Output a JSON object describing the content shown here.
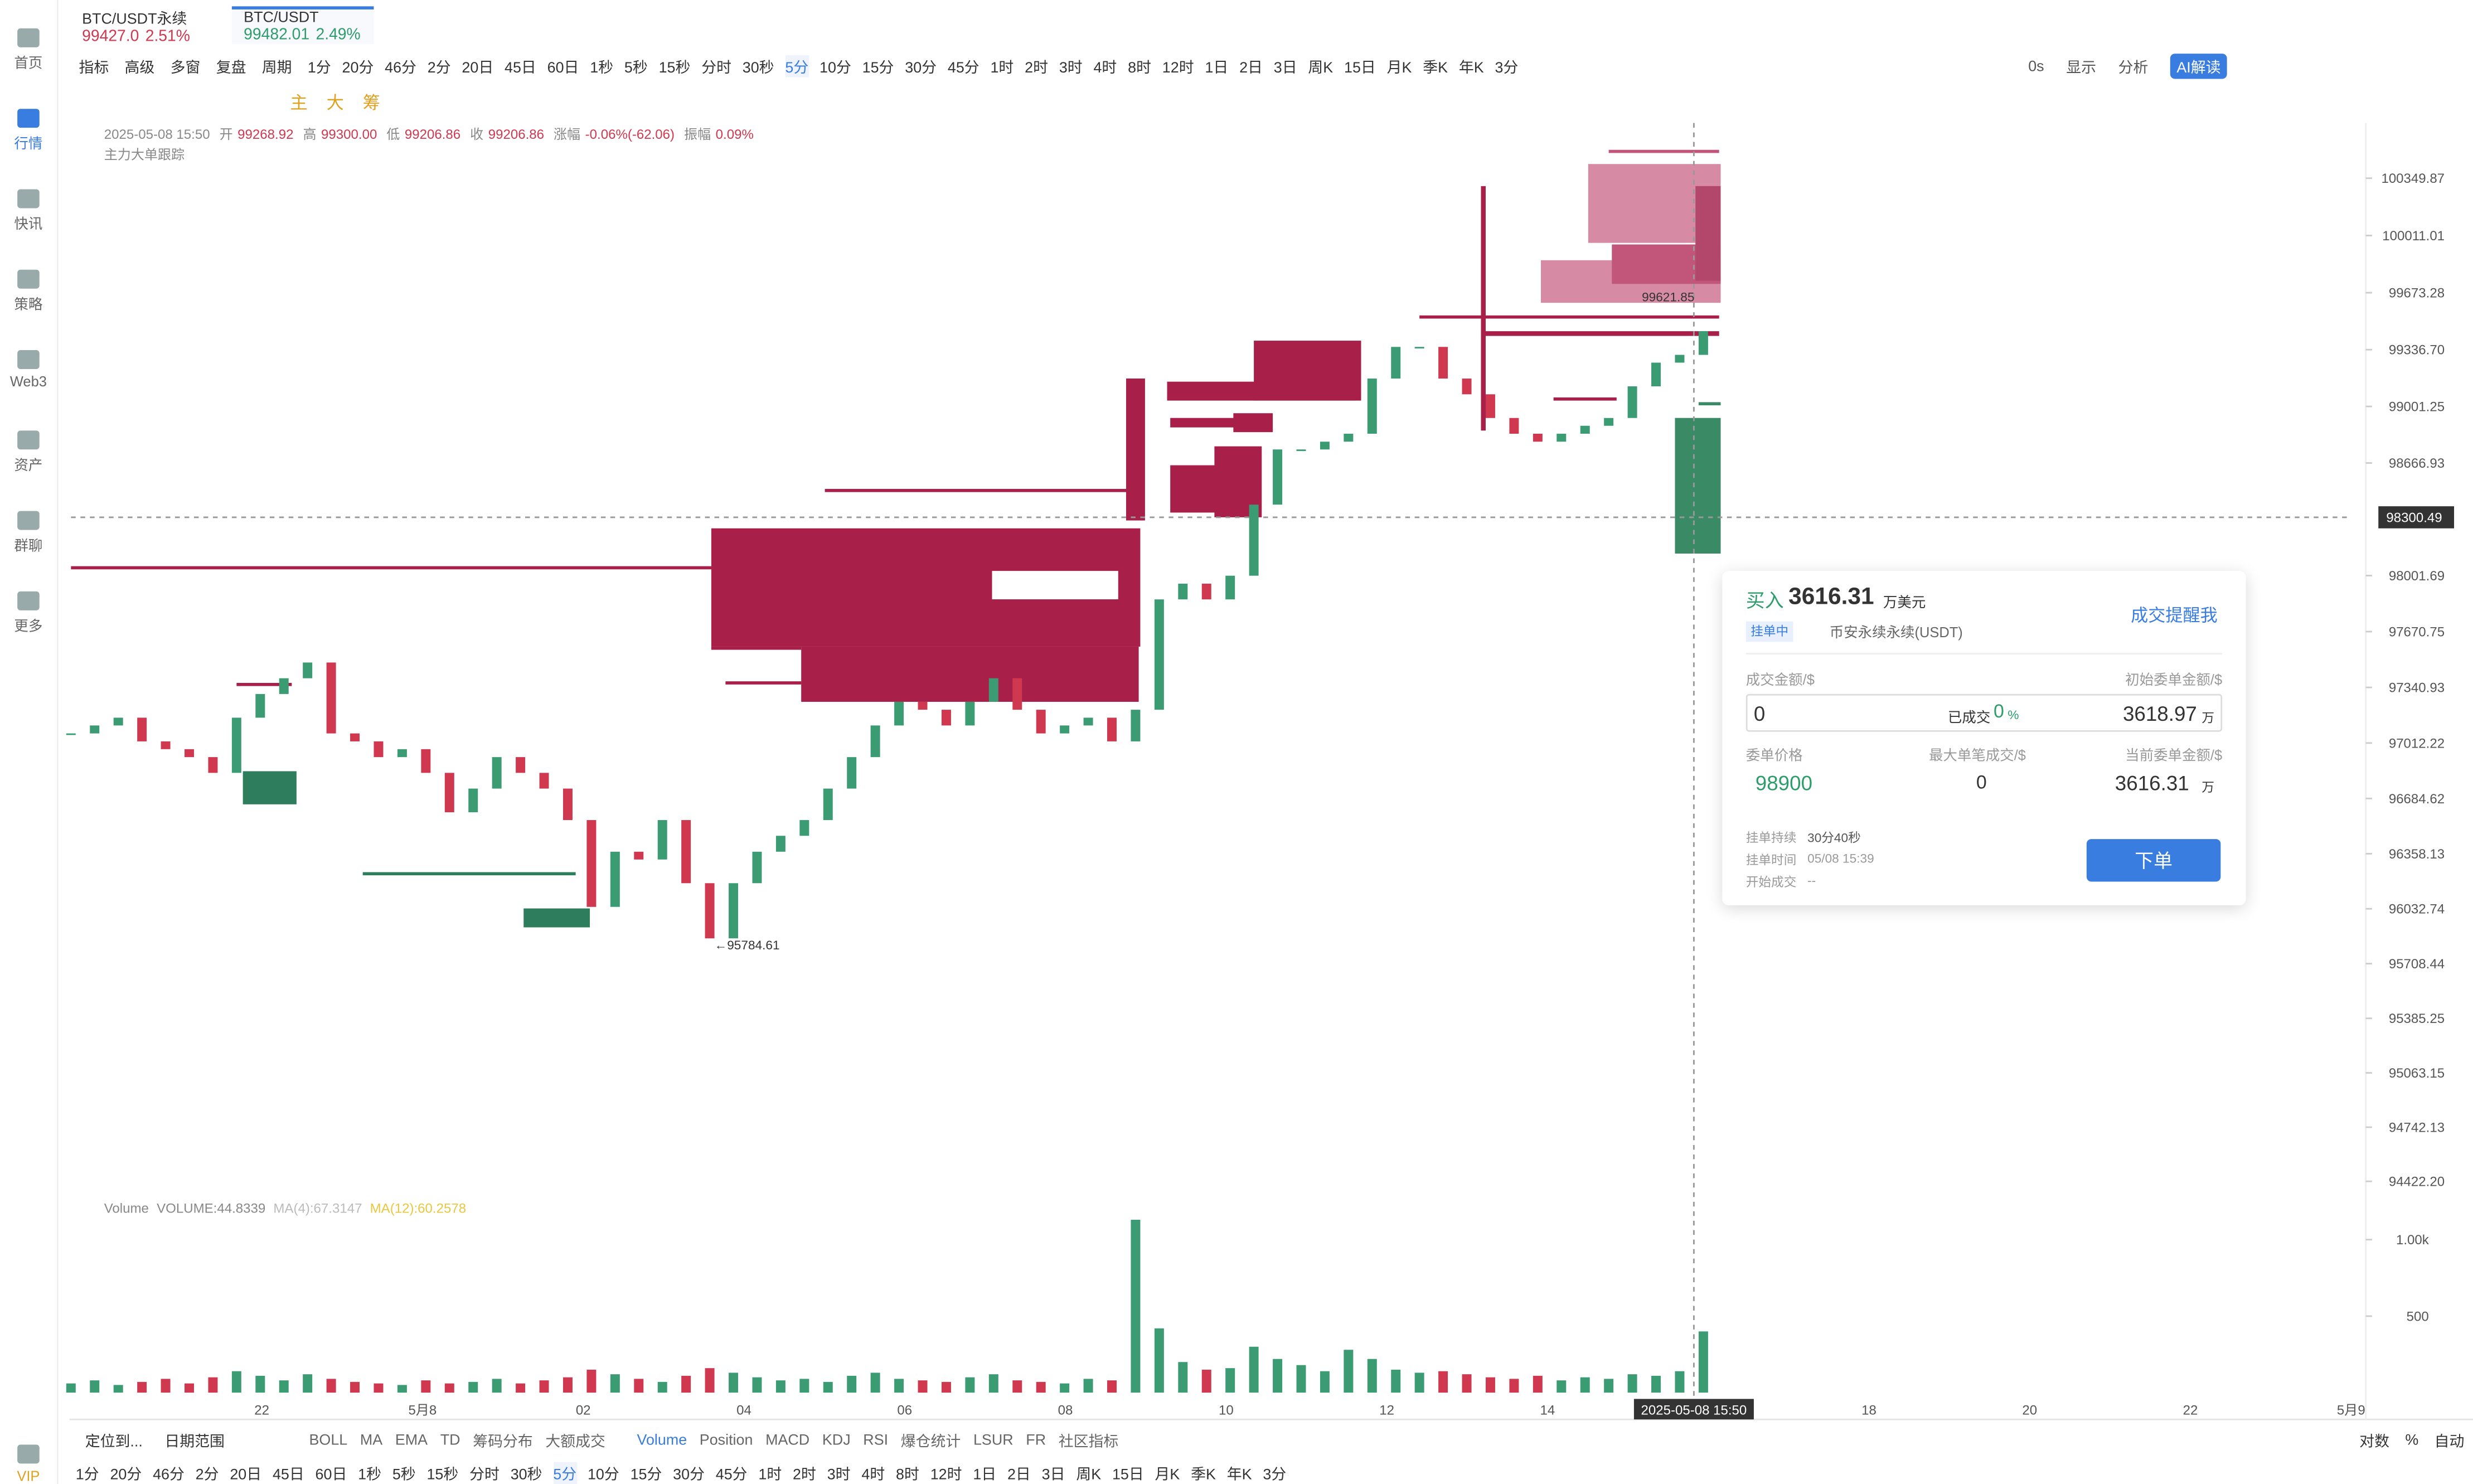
{
  "sidebar": [
    "首页",
    "行情",
    "快讯",
    "策略",
    "Web3",
    "资产",
    "群聊",
    "更多",
    "VIP"
  ],
  "tabs": [
    {
      "name": "BTC/USDT永续",
      "price": "99427.0",
      "change": "2.51%"
    },
    {
      "name": "BTC/USDT",
      "price": "99482.01",
      "change": "2.49%"
    }
  ],
  "toolbar": {
    "left": [
      "指标",
      "高级",
      "多窗",
      "复盘",
      "周期"
    ],
    "intervals": [
      "1分",
      "20分",
      "46分",
      "2分",
      "20日",
      "45日",
      "60日",
      "1秒",
      "5秒",
      "15秒",
      "分时",
      "30秒",
      "5分",
      "10分",
      "15分",
      "30分",
      "45分",
      "1时",
      "2时",
      "3时",
      "4时",
      "8时",
      "12时",
      "1日",
      "2日",
      "3日",
      "周K",
      "15日",
      "月K",
      "季K",
      "年K",
      "3分"
    ],
    "right": [
      "0s",
      "显示",
      "分析",
      "AI解读"
    ]
  },
  "draw_tools": [
    "主",
    "大",
    "筹"
  ],
  "info": {
    "time": "2025-05-08 15:50",
    "fields": [
      {
        "label": "开",
        "value": "99268.92"
      },
      {
        "label": "高",
        "value": "99300.00"
      },
      {
        "label": "低",
        "value": "99206.86"
      },
      {
        "label": "收",
        "value": "99206.86"
      },
      {
        "label": "涨幅",
        "value": "-0.06%(-62.06)"
      },
      {
        "label": "振幅",
        "value": "0.09%"
      }
    ],
    "tracker": "主力大单跟踪"
  },
  "chart_data": {
    "type": "candlestick",
    "closes": [
      97069,
      97116,
      97162,
      97022,
      96976,
      96929,
      96836,
      97162,
      97302,
      97395,
      97488,
      97069,
      97022,
      96929,
      96976,
      96836,
      96603,
      96743,
      96929,
      96836,
      96743,
      96557,
      96044,
      96370,
      96324,
      96557,
      96184,
      95858,
      96184,
      96370,
      96464,
      96557,
      96743,
      96929,
      97116,
      97256,
      97209,
      97116,
      97256,
      97395,
      97209,
      97069,
      97116,
      97162,
      97022,
      97209,
      97861,
      97954,
      97861,
      98001,
      98421,
      98747,
      98747,
      98793,
      98840,
      99166,
      99353,
      99353,
      99166,
      99073,
      98933,
      98840,
      98793,
      98840,
      98887,
      98933,
      99120,
      99260,
      99306,
      99446
    ],
    "volumes": [
      60,
      80,
      50,
      70,
      90,
      60,
      100,
      140,
      110,
      80,
      120,
      90,
      70,
      60,
      50,
      80,
      60,
      70,
      90,
      60,
      80,
      100,
      150,
      120,
      90,
      70,
      110,
      160,
      130,
      100,
      80,
      90,
      70,
      110,
      130,
      90,
      80,
      70,
      100,
      120,
      80,
      70,
      60,
      90,
      80,
      1130,
      420,
      200,
      150,
      160,
      300,
      220,
      180,
      140,
      280,
      220,
      150,
      130,
      140,
      120,
      100,
      90,
      110,
      80,
      100,
      90,
      120,
      110,
      140,
      400
    ],
    "ylim": [
      94320,
      100471
    ],
    "yticks": [
      100349.87,
      100011.01,
      99673.28,
      {
        "value": 99336.7,
        "label": "99336.70"
      },
      99001.25,
      98666.93,
      98001.69,
      97670.75,
      97340.93,
      97012.22,
      96684.62,
      96358.13,
      96032.74,
      95708.44,
      95385.25,
      95063.15,
      94742.13,
      {
        "value": 94422.2,
        "label": "94422.20"
      }
    ],
    "vlim": [
      0,
      1165
    ],
    "vticks": [
      {
        "value": 1000,
        "label": "1.00k"
      },
      500
    ],
    "x_labels": [
      "22",
      "5月8",
      "02",
      "04",
      "06",
      "08",
      "10",
      "12",
      "14",
      null,
      "18",
      "20",
      "22",
      "5月9"
    ],
    "annotations": {
      "high_marker": "99621.85",
      "low_marker": "95784.61",
      "crosshair_price": "98300.49",
      "crosshair_time": "2025-05-08 15:50"
    },
    "colors": {
      "up": "#3b9c74",
      "down": "#d0384f"
    },
    "volume_legend": [
      "Volume",
      "VOLUME:44.8339",
      "MA(4):67.3147",
      "MA(12):60.2578"
    ]
  },
  "order_panel": {
    "side": "买入",
    "amount": "3616.31",
    "unit": "万美元",
    "remind": "成交提醒我",
    "status": "挂单中",
    "exchange": "币安永续永续(USDT)",
    "col1": "成交金额/$",
    "col2": "初始委单金额/$",
    "filled": "0",
    "filled_label": "已成交",
    "filled_pct": "0",
    "pct": "%",
    "initial": "3618.97",
    "wan": "万",
    "price_label": "委单价格",
    "max_label": "最大单笔成交/$",
    "current_label": "当前委单金额/$",
    "price": "98900",
    "max": "0",
    "current": "3616.31",
    "duration_label": "挂单持续",
    "duration": "30分40秒",
    "time_label": "挂单时间",
    "time": "05/08 15:39",
    "start_label": "开始成交",
    "start": "--",
    "button": "下单"
  },
  "bottom": {
    "left": [
      "定位到...",
      "日期范围"
    ],
    "indicators": [
      "BOLL",
      "MA",
      "EMA",
      "TD",
      "筹码分布",
      "大额成交",
      "Volume",
      "Position",
      "MACD",
      "KDJ",
      "RSI",
      "爆仓统计",
      "LSUR",
      "FR",
      "社区指标"
    ],
    "right": [
      "对数",
      "%",
      "自动"
    ]
  }
}
